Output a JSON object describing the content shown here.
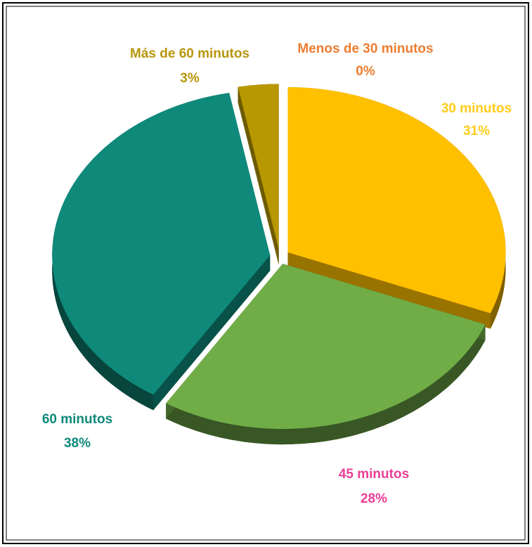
{
  "chart_data": {
    "type": "pie",
    "categories": [
      "Menos de 30 minutos",
      "30 minutos",
      "45 minutos",
      "60 minutos",
      "Más de 60 minutos"
    ],
    "values": [
      0,
      31,
      28,
      38,
      3
    ],
    "value_labels": [
      "0%",
      "31%",
      "28%",
      "38%",
      "3%"
    ],
    "colors": [
      "#ed7d31",
      "#ffc000",
      "#70ad47",
      "#0e897a",
      "#b89800"
    ],
    "label_colors": [
      "#ed7d31",
      "#ffcc1a",
      "#ea3f96",
      "#0e897a",
      "#b8960c"
    ]
  }
}
